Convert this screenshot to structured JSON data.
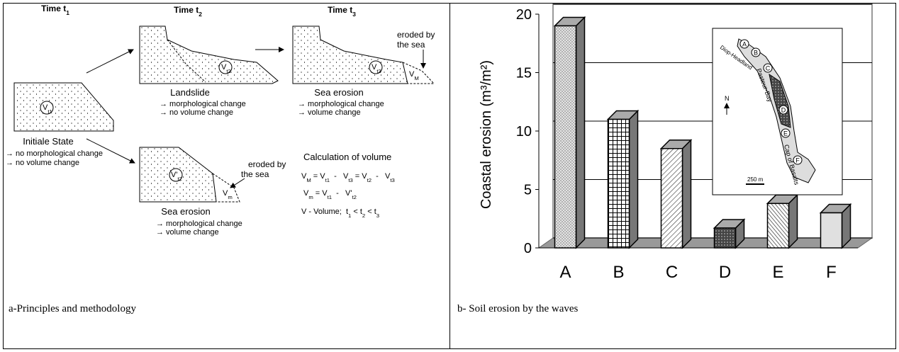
{
  "panel_a": {
    "time_headers": [
      [
        "Time t",
        {
          "sub": "1"
        }
      ],
      [
        "Time t",
        {
          "sub": "2"
        }
      ],
      [
        "Time t",
        {
          "sub": "3"
        }
      ]
    ],
    "initial": {
      "title": "Initiale State",
      "bullets": [
        "→ no morphological change",
        "→ no volume change"
      ],
      "volume": [
        "V",
        {
          "sub": "t1"
        }
      ]
    },
    "landslide": {
      "title": "Landslide",
      "bullets": [
        "→ morphological change",
        "→ no volume change"
      ],
      "volume": [
        "V",
        {
          "sub": "t2"
        }
      ]
    },
    "erosion_top": {
      "title": "Sea erosion",
      "bullets": [
        "→ morphological change",
        "→ volume change"
      ],
      "volume": [
        "V",
        {
          "sub": "t3"
        }
      ],
      "eroded": [
        "eroded by",
        "the sea"
      ],
      "eroded_volume": [
        "V",
        {
          "sub": "M"
        }
      ]
    },
    "erosion_bottom": {
      "title": "Sea erosion",
      "bullets": [
        "→ morphological change",
        "→ volume change"
      ],
      "volume": [
        "V'",
        {
          "sub": "t2"
        }
      ],
      "eroded": [
        "eroded by",
        "the sea"
      ],
      "eroded_volume": [
        "V",
        {
          "sub": "m"
        }
      ]
    },
    "calculation": {
      "title": "Calculation of volume",
      "formulas": [
        [
          "V",
          {
            "sub": "M"
          },
          " = V",
          {
            "sub": "t1"
          },
          "  -   V",
          {
            "sub": "t3"
          },
          " = V",
          {
            "sub": "t2"
          },
          "  -   V",
          {
            "sub": "t3"
          }
        ],
        [
          "V",
          {
            "sub": "m"
          },
          " = V",
          {
            "sub": "t1"
          },
          "  -   V'",
          {
            "sub": "t2"
          }
        ],
        [
          "V - Volume;  t",
          {
            "sub": "1"
          },
          " < t",
          {
            "sub": "2"
          },
          " < t",
          {
            "sub": "3"
          }
        ]
      ]
    },
    "caption": "a-Principles and methodology"
  },
  "panel_b": {
    "caption": "b- Soil erosion by the waves"
  },
  "chart_data": {
    "type": "bar",
    "ylabel": "Coastal erosion (m³/m²)",
    "categories": [
      "A",
      "B",
      "C",
      "D",
      "E",
      "F"
    ],
    "values": [
      19,
      11,
      8.5,
      1.7,
      3.8,
      3
    ],
    "ylim": [
      0,
      20
    ],
    "yticks": [
      0,
      5,
      10,
      15,
      20
    ],
    "grid": true,
    "inset": {
      "labels": [
        "Diop-Headland",
        "Pasteur-Bay",
        "Cap of Basalts",
        "N",
        "250 m"
      ]
    }
  }
}
